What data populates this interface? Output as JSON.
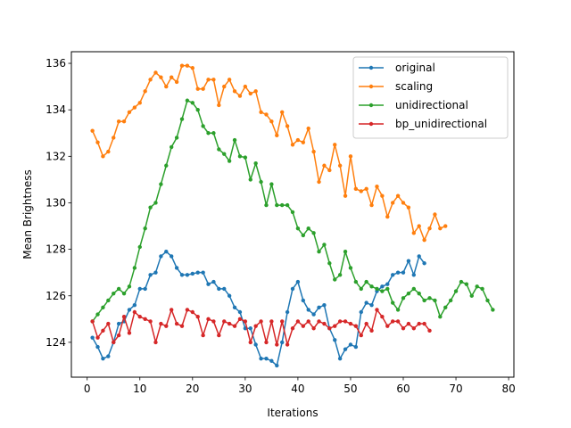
{
  "chart_data": {
    "type": "line",
    "title": "",
    "xlabel": "Iterations",
    "ylabel": "Mean Brightness",
    "xlim": [
      -3,
      81
    ],
    "ylim": [
      122.5,
      136.5
    ],
    "xticks": [
      0,
      10,
      20,
      30,
      40,
      50,
      60,
      70,
      80
    ],
    "yticks": [
      124,
      126,
      128,
      130,
      132,
      134,
      136
    ],
    "grid": false,
    "legend_position": "upper right",
    "series": [
      {
        "name": "original",
        "color": "#1f77b4",
        "x": [
          1,
          2,
          3,
          4,
          5,
          6,
          7,
          8,
          9,
          10,
          11,
          12,
          13,
          14,
          15,
          16,
          17,
          18,
          19,
          20,
          21,
          22,
          23,
          24,
          25,
          26,
          27,
          28,
          29,
          30,
          31,
          32,
          33,
          34,
          35,
          36,
          37,
          38,
          39,
          40,
          41,
          42,
          43,
          44,
          45,
          46,
          47,
          48,
          49,
          50,
          51,
          52,
          53,
          54,
          55,
          56,
          57,
          58,
          59,
          60,
          61,
          62,
          63,
          64
        ],
        "y": [
          124.2,
          123.8,
          123.3,
          123.4,
          124.0,
          124.8,
          124.9,
          125.4,
          125.6,
          126.3,
          126.3,
          126.9,
          127.0,
          127.7,
          127.9,
          127.7,
          127.2,
          126.9,
          126.9,
          126.95,
          127.0,
          127.0,
          126.5,
          126.6,
          126.3,
          126.3,
          126.0,
          125.5,
          125.3,
          124.6,
          124.6,
          123.9,
          123.3,
          123.3,
          123.2,
          123.0,
          124.0,
          125.3,
          126.3,
          126.6,
          125.8,
          125.4,
          125.2,
          125.5,
          125.6,
          124.6,
          124.1,
          123.3,
          123.7,
          123.9,
          123.8,
          125.3,
          125.7,
          125.6,
          126.2,
          126.4,
          126.5,
          126.9,
          127.0,
          127.0,
          127.5,
          126.9,
          127.7,
          127.4
        ]
      },
      {
        "name": "scaling",
        "color": "#ff7f0e",
        "x": [
          1,
          2,
          3,
          4,
          5,
          6,
          7,
          8,
          9,
          10,
          11,
          12,
          13,
          14,
          15,
          16,
          17,
          18,
          19,
          20,
          21,
          22,
          23,
          24,
          25,
          26,
          27,
          28,
          29,
          30,
          31,
          32,
          33,
          34,
          35,
          36,
          37,
          38,
          39,
          40,
          41,
          42,
          43,
          44,
          45,
          46,
          47,
          48,
          49,
          50,
          51,
          52,
          53,
          54,
          55,
          56,
          57,
          58,
          59,
          60,
          61,
          62,
          63,
          64,
          65,
          66,
          67,
          68
        ],
        "y": [
          133.1,
          132.6,
          132.0,
          132.2,
          132.8,
          133.5,
          133.5,
          133.9,
          134.1,
          134.3,
          134.8,
          135.3,
          135.6,
          135.4,
          135.0,
          135.4,
          135.2,
          135.9,
          135.9,
          135.8,
          134.9,
          134.9,
          135.3,
          135.3,
          134.2,
          135.0,
          135.3,
          134.8,
          134.6,
          135.0,
          134.7,
          134.8,
          133.9,
          133.8,
          133.5,
          132.9,
          133.9,
          133.3,
          132.5,
          132.7,
          132.6,
          133.2,
          132.2,
          130.9,
          131.6,
          131.4,
          132.5,
          131.6,
          130.3,
          132.0,
          130.6,
          130.5,
          130.6,
          129.9,
          130.7,
          130.3,
          129.4,
          130.0,
          130.3,
          130.0,
          129.8,
          128.7,
          129.0,
          128.4,
          128.9,
          129.5,
          128.9,
          129.0
        ]
      },
      {
        "name": "unidirectional",
        "color": "#2ca02c",
        "x": [
          1,
          2,
          3,
          4,
          5,
          6,
          7,
          8,
          9,
          10,
          11,
          12,
          13,
          14,
          15,
          16,
          17,
          18,
          19,
          20,
          21,
          22,
          23,
          24,
          25,
          26,
          27,
          28,
          29,
          30,
          31,
          32,
          33,
          34,
          35,
          36,
          37,
          38,
          39,
          40,
          41,
          42,
          43,
          44,
          45,
          46,
          47,
          48,
          49,
          50,
          51,
          52,
          53,
          54,
          55,
          56,
          57,
          58,
          59,
          60,
          61,
          62,
          63,
          64,
          65,
          66,
          67,
          68,
          69,
          70,
          71,
          72,
          73,
          74,
          75,
          76,
          77
        ],
        "y": [
          124.9,
          125.2,
          125.5,
          125.8,
          126.1,
          126.3,
          126.1,
          126.4,
          127.2,
          128.1,
          128.9,
          129.8,
          130.0,
          130.8,
          131.6,
          132.4,
          132.8,
          133.6,
          134.4,
          134.3,
          134.0,
          133.3,
          133.0,
          133.0,
          132.3,
          132.1,
          131.8,
          132.7,
          132.0,
          131.95,
          131.0,
          131.7,
          130.9,
          129.9,
          130.8,
          129.9,
          129.9,
          129.9,
          129.6,
          128.9,
          128.6,
          128.9,
          128.7,
          127.9,
          128.2,
          127.4,
          126.7,
          126.9,
          127.9,
          127.2,
          126.6,
          126.3,
          126.6,
          126.4,
          126.3,
          126.2,
          126.3,
          125.7,
          125.4,
          125.9,
          126.1,
          126.3,
          126.1,
          125.8,
          125.9,
          125.8,
          125.1,
          125.5,
          125.8,
          126.2,
          126.6,
          126.5,
          126.0,
          126.4,
          126.3,
          125.8,
          125.4
        ]
      },
      {
        "name": "bp_unidirectional",
        "color": "#d62728",
        "x": [
          1,
          2,
          3,
          4,
          5,
          6,
          7,
          8,
          9,
          10,
          11,
          12,
          13,
          14,
          15,
          16,
          17,
          18,
          19,
          20,
          21,
          22,
          23,
          24,
          25,
          26,
          27,
          28,
          29,
          30,
          31,
          32,
          33,
          34,
          35,
          36,
          37,
          38,
          39,
          40,
          41,
          42,
          43,
          44,
          45,
          46,
          47,
          48,
          49,
          50,
          51,
          52,
          53,
          54,
          55,
          56,
          57,
          58,
          59,
          60,
          61,
          62,
          63,
          64,
          65
        ],
        "y": [
          124.9,
          124.2,
          124.5,
          124.8,
          124.0,
          124.3,
          125.1,
          124.4,
          125.3,
          125.1,
          125.0,
          124.9,
          124.0,
          124.8,
          124.7,
          125.4,
          124.8,
          124.7,
          125.4,
          125.3,
          125.1,
          124.3,
          125.0,
          124.9,
          124.3,
          124.9,
          124.8,
          124.7,
          125.0,
          124.9,
          124.0,
          124.7,
          124.9,
          124.0,
          124.9,
          123.9,
          124.9,
          123.9,
          124.6,
          124.9,
          124.7,
          124.9,
          124.6,
          124.9,
          124.8,
          124.6,
          124.7,
          124.9,
          124.9,
          124.8,
          124.7,
          124.3,
          124.8,
          124.5,
          125.4,
          125.1,
          124.7,
          124.9,
          124.9,
          124.6,
          124.8,
          124.6,
          124.8,
          124.8,
          124.5
        ]
      }
    ]
  }
}
